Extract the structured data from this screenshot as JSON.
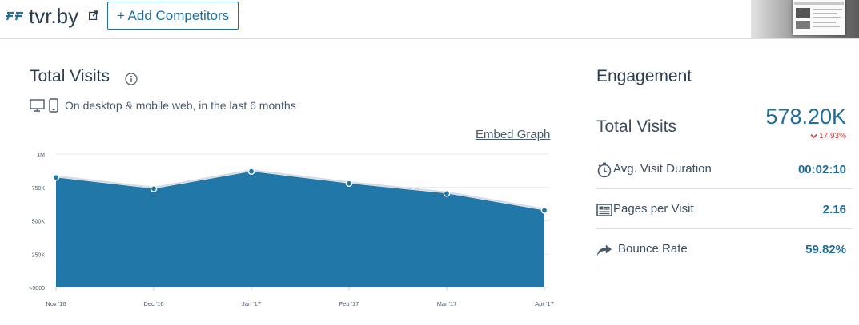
{
  "header": {
    "site_name": "tvr.by",
    "add_competitors_label": "+ Add Competitors"
  },
  "total_visits": {
    "title": "Total Visits",
    "subtitle": "On desktop & mobile web, in the last 6 months",
    "embed_label": "Embed Graph"
  },
  "chart_data": {
    "type": "area",
    "x": [
      "Nov '16",
      "Dec '16",
      "Jan '17",
      "Feb '17",
      "Mar '17",
      "Apr '17"
    ],
    "y_ticks": [
      "1M",
      "750K",
      "500K",
      "250K",
      "<5000"
    ],
    "ylim": [
      0,
      1000000
    ],
    "series": [
      {
        "values": [
          825000,
          740000,
          870000,
          780000,
          705000,
          578200
        ]
      }
    ],
    "color": "#2077a8",
    "grid": true
  },
  "engagement": {
    "title": "Engagement",
    "total_visits_label": "Total Visits",
    "total_visits_value": "578.20K",
    "change": "17.93%",
    "rows": [
      {
        "icon": "stopwatch-icon",
        "label": "Avg. Visit Duration",
        "value": "00:02:10"
      },
      {
        "icon": "pages-icon",
        "label": "Pages per Visit",
        "value": "2.16"
      },
      {
        "icon": "bounce-arrow-icon",
        "label": "Bounce Rate",
        "value": "59.82%"
      }
    ]
  },
  "colors": {
    "accent": "#1f6d9b",
    "area": "#2077a8",
    "negative": "#d63c3c"
  }
}
